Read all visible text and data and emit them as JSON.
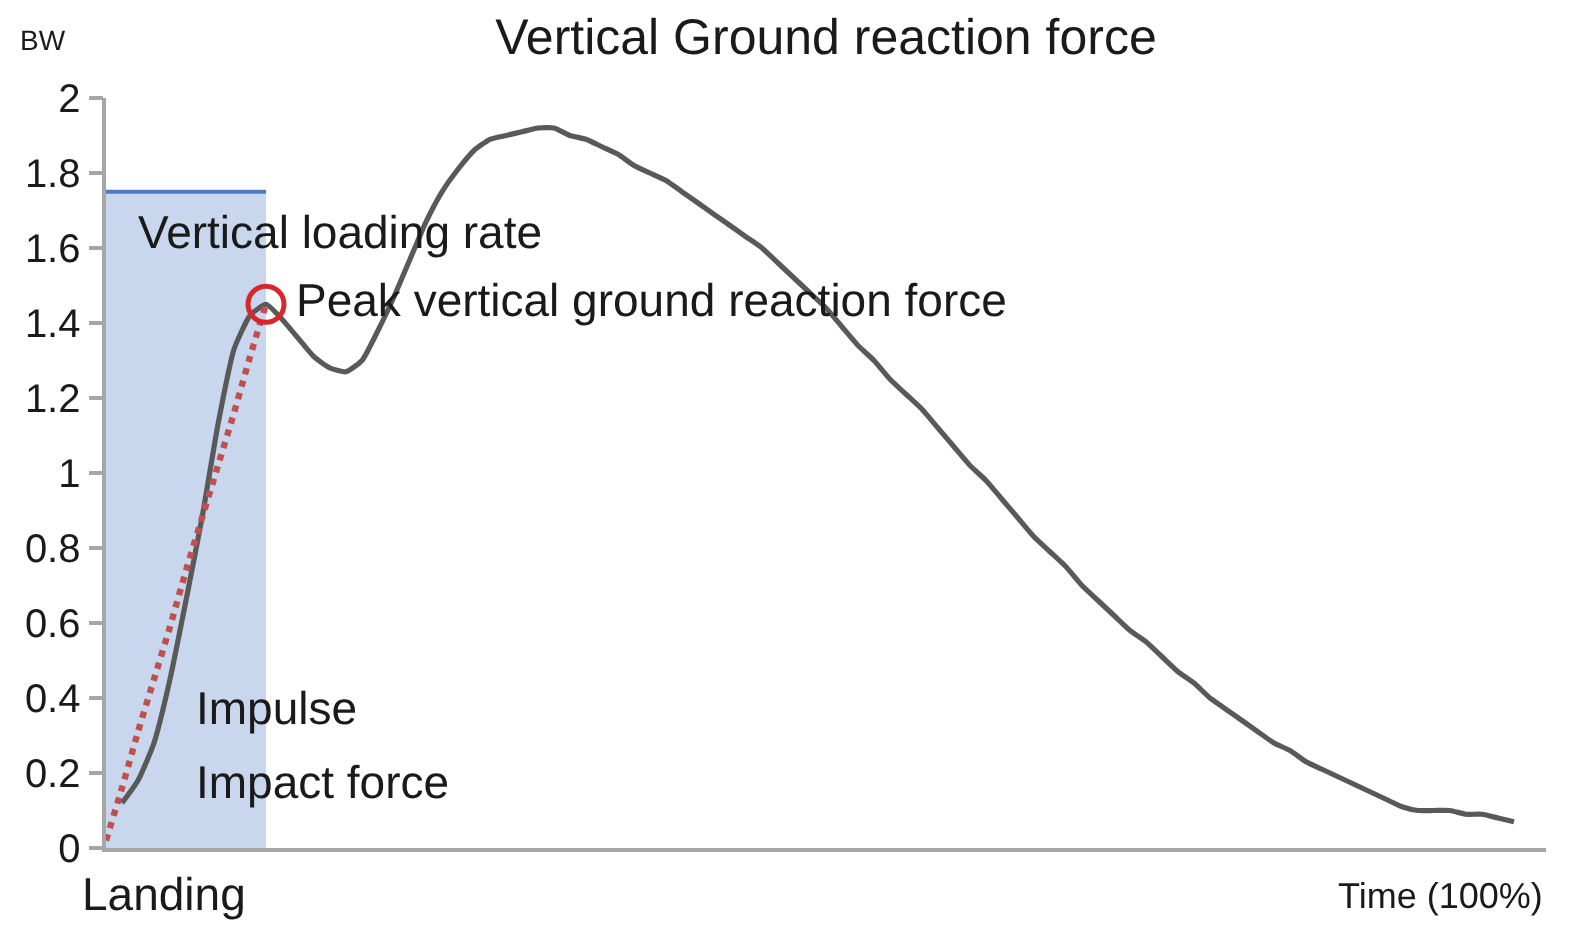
{
  "chart_data": {
    "type": "line",
    "title": "Vertical Ground reaction force",
    "xlabel": "Time (100%)",
    "ylabel": "BW",
    "categories": [
      null,
      null,
      null,
      null,
      null,
      null,
      null,
      null,
      null,
      null,
      null,
      null,
      null,
      null,
      null,
      null,
      null,
      null,
      null,
      null,
      null,
      null,
      null,
      null,
      null,
      null,
      null,
      null,
      null,
      null,
      null,
      null,
      null,
      null,
      null,
      null,
      null,
      null,
      null,
      null,
      null,
      null,
      null,
      null,
      null,
      null,
      null,
      null,
      null,
      null,
      null,
      null,
      null,
      null,
      null,
      null,
      null,
      null,
      null,
      null,
      null,
      null,
      null,
      null,
      null,
      null,
      null,
      null,
      null,
      null,
      null,
      null,
      null,
      null,
      null,
      null,
      null,
      null,
      null,
      null,
      null,
      null,
      null,
      null,
      null,
      null,
      null,
      null,
      null,
      null,
      null
    ],
    "series": [
      {
        "type": "area",
        "color": "#4a7cc4",
        "values": [
          1.75,
          1.75,
          1.75,
          1.75,
          1.75,
          1.75,
          1.75,
          1.75,
          1.75,
          1.75,
          1.75,
          null,
          null,
          null,
          null,
          null,
          null,
          null,
          null,
          null,
          null,
          null,
          null,
          null,
          null,
          null,
          null,
          null,
          null,
          null,
          null,
          null,
          null,
          null,
          null,
          null,
          null,
          null,
          null,
          null,
          null,
          null,
          null,
          null,
          null,
          null,
          null,
          null,
          null,
          null,
          null,
          null,
          null,
          null,
          null,
          null,
          null,
          null,
          null,
          null,
          null,
          null,
          null,
          null,
          null,
          null,
          null,
          null,
          null,
          null,
          null,
          null,
          null,
          null,
          null,
          null,
          null,
          null,
          null,
          null,
          null,
          null,
          null,
          null,
          null,
          null,
          null,
          null,
          null,
          null,
          null
        ]
      },
      {
        "color": "#595959",
        "line_style": "solid",
        "values": [
          null,
          0.12,
          0.18,
          0.28,
          0.45,
          0.66,
          0.88,
          1.13,
          1.33,
          1.42,
          1.45,
          1.41,
          1.36,
          1.31,
          1.28,
          1.27,
          1.3,
          1.38,
          1.47,
          1.57,
          1.67,
          1.75,
          1.81,
          1.86,
          1.89,
          1.9,
          1.91,
          1.92,
          1.92,
          1.9,
          1.89,
          1.87,
          1.85,
          1.82,
          1.8,
          1.78,
          1.75,
          1.72,
          1.69,
          1.66,
          1.63,
          1.6,
          1.56,
          1.52,
          1.48,
          1.44,
          1.39,
          1.34,
          1.3,
          1.25,
          1.21,
          1.17,
          1.12,
          1.07,
          1.02,
          0.98,
          0.93,
          0.88,
          0.83,
          0.79,
          0.75,
          0.7,
          0.66,
          0.62,
          0.58,
          0.55,
          0.51,
          0.47,
          0.44,
          0.4,
          0.37,
          0.34,
          0.31,
          0.28,
          0.26,
          0.23,
          0.21,
          0.19,
          0.17,
          0.15,
          0.13,
          0.11,
          0.1,
          0.1,
          0.1,
          0.09,
          0.09,
          0.08,
          0.07,
          null,
          null
        ]
      },
      {
        "type": "line",
        "color": "#c0504d",
        "line_style": "dotted",
        "values": [
          0.02,
          0.16,
          0.31,
          0.45,
          0.59,
          0.74,
          0.88,
          1.02,
          1.16,
          1.31,
          1.45,
          null,
          null,
          null,
          null,
          null,
          null,
          null,
          null,
          null,
          null,
          null,
          null,
          null,
          null,
          null,
          null,
          null,
          null,
          null,
          null,
          null,
          null,
          null,
          null,
          null,
          null,
          null,
          null,
          null,
          null,
          null,
          null,
          null,
          null,
          null,
          null,
          null,
          null,
          null,
          null,
          null,
          null,
          null,
          null,
          null,
          null,
          null,
          null,
          null,
          null,
          null,
          null,
          null,
          null,
          null,
          null,
          null,
          null,
          null,
          null,
          null,
          null,
          null,
          null,
          null,
          null,
          null,
          null,
          null,
          null,
          null,
          null,
          null,
          null,
          null,
          null,
          null,
          null,
          null,
          null
        ]
      },
      {
        "type": "scatter",
        "color": "#d9262b",
        "marker": "circle",
        "values": [
          null,
          null,
          null,
          null,
          null,
          null,
          null,
          null,
          null,
          null,
          1.45,
          null,
          null,
          null,
          null,
          null,
          null,
          null,
          null,
          null,
          null,
          null,
          null,
          null,
          null,
          null,
          null,
          null,
          null,
          null,
          null,
          null,
          null,
          null,
          null,
          null,
          null,
          null,
          null,
          null,
          null,
          null,
          null,
          null,
          null,
          null,
          null,
          null,
          null,
          null,
          null,
          null,
          null,
          null,
          null,
          null,
          null,
          null,
          null,
          null,
          null,
          null,
          null,
          null,
          null,
          null,
          null,
          null,
          null,
          null,
          null,
          null,
          null,
          null,
          null,
          null,
          null,
          null,
          null,
          null,
          null,
          null,
          null,
          null,
          null,
          null,
          null,
          null,
          null,
          null,
          null
        ]
      }
    ],
    "ylim": [
      0,
      2
    ],
    "yticks": [
      0,
      0.2,
      0.4,
      0.6,
      0.8,
      1,
      1.2,
      1.4,
      1.6,
      1.8,
      2
    ],
    "tick_labels": "y",
    "annotations": [
      "Vertical loading rate",
      "Peak vertical ground reaction force",
      "Impulse",
      "Impact force",
      "Landing"
    ]
  }
}
